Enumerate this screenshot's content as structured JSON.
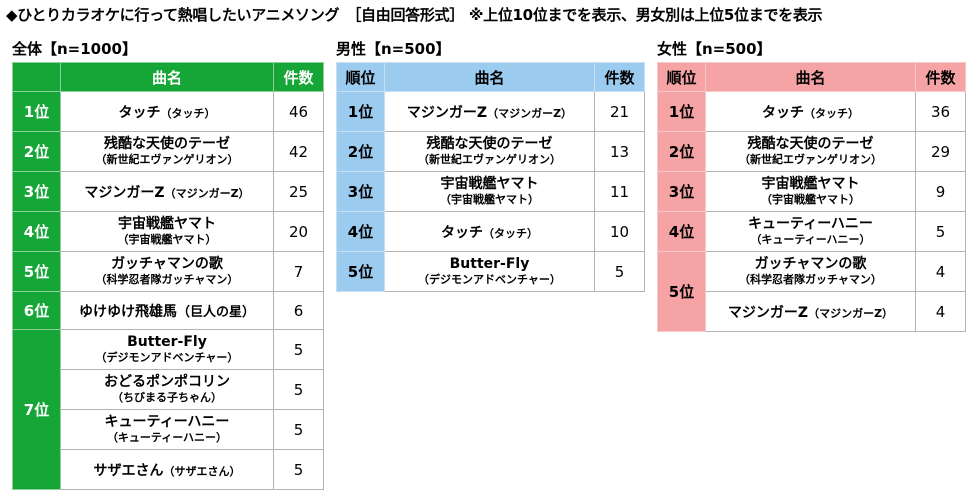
{
  "title": "◆ひとりカラオケに行って熱唱したいアニメソング　［自由回答形式］ ※上位10位までを表示、男女別は上位5位までを表示",
  "headers": {
    "rank": "順位",
    "song": "曲名",
    "count": "件数"
  },
  "total": {
    "label": "全体【n=1000】",
    "rows": [
      {
        "rank": "1位",
        "song": "タッチ",
        "anime": "（タッチ）",
        "count": "46"
      },
      {
        "rank": "2位",
        "song": "残酷な天使のテーゼ",
        "anime": "（新世紀エヴァンゲリオン）",
        "count": "42"
      },
      {
        "rank": "3位",
        "song": "マジンガーZ",
        "anime": "（マジンガーZ）",
        "count": "25"
      },
      {
        "rank": "4位",
        "song": "宇宙戦艦ヤマト",
        "anime": "（宇宙戦艦ヤマト）",
        "count": "20"
      },
      {
        "rank": "5位",
        "song": "ガッチャマンの歌",
        "anime": "（科学忍者隊ガッチャマン）",
        "count": "7"
      },
      {
        "rank": "6位",
        "song": "ゆけゆけ飛雄馬",
        "anime": "（巨人の星）",
        "count": "6"
      },
      {
        "rank": "7位",
        "song": "Butter-Fly",
        "anime": "（デジモンアドベンチャー）",
        "count": "5"
      },
      {
        "rank": "",
        "song": "おどるポンポコリン",
        "anime": "（ちびまる子ちゃん）",
        "count": "5"
      },
      {
        "rank": "",
        "song": "キューティーハニー",
        "anime": "（キューティーハニー）",
        "count": "5"
      },
      {
        "rank": "",
        "song": "サザエさん",
        "anime": "（サザエさん）",
        "count": "5"
      }
    ]
  },
  "male": {
    "label": "男性【n=500】",
    "rows": [
      {
        "rank": "1位",
        "song": "マジンガーZ",
        "anime": "（マジンガーZ）",
        "count": "21"
      },
      {
        "rank": "2位",
        "song": "残酷な天使のテーゼ",
        "anime": "（新世紀エヴァンゲリオン）",
        "count": "13"
      },
      {
        "rank": "3位",
        "song": "宇宙戦艦ヤマト",
        "anime": "（宇宙戦艦ヤマト）",
        "count": "11"
      },
      {
        "rank": "4位",
        "song": "タッチ",
        "anime": "（タッチ）",
        "count": "10"
      },
      {
        "rank": "5位",
        "song": "Butter-Fly",
        "anime": "（デジモンアドベンチャー）",
        "count": "5"
      }
    ]
  },
  "female": {
    "label": "女性【n=500】",
    "rows": [
      {
        "rank": "1位",
        "song": "タッチ",
        "anime": "（タッチ）",
        "count": "36"
      },
      {
        "rank": "2位",
        "song": "残酷な天使のテーゼ",
        "anime": "（新世紀エヴァンゲリオン）",
        "count": "29"
      },
      {
        "rank": "3位",
        "song": "宇宙戦艦ヤマト",
        "anime": "（宇宙戦艦ヤマト）",
        "count": "9"
      },
      {
        "rank": "4位",
        "song": "キューティーハニー",
        "anime": "（キューティーハニー）",
        "count": "5"
      },
      {
        "rank": "5位",
        "song": "ガッチャマンの歌",
        "anime": "（科学忍者隊ガッチャマン）",
        "count": "4"
      },
      {
        "rank": "",
        "song": "マジンガーZ",
        "anime": "（マジンガーZ）",
        "count": "4"
      }
    ]
  },
  "colors": {
    "total": "#16a537",
    "male": "#9ccbf0",
    "female": "#f6a3a5"
  }
}
